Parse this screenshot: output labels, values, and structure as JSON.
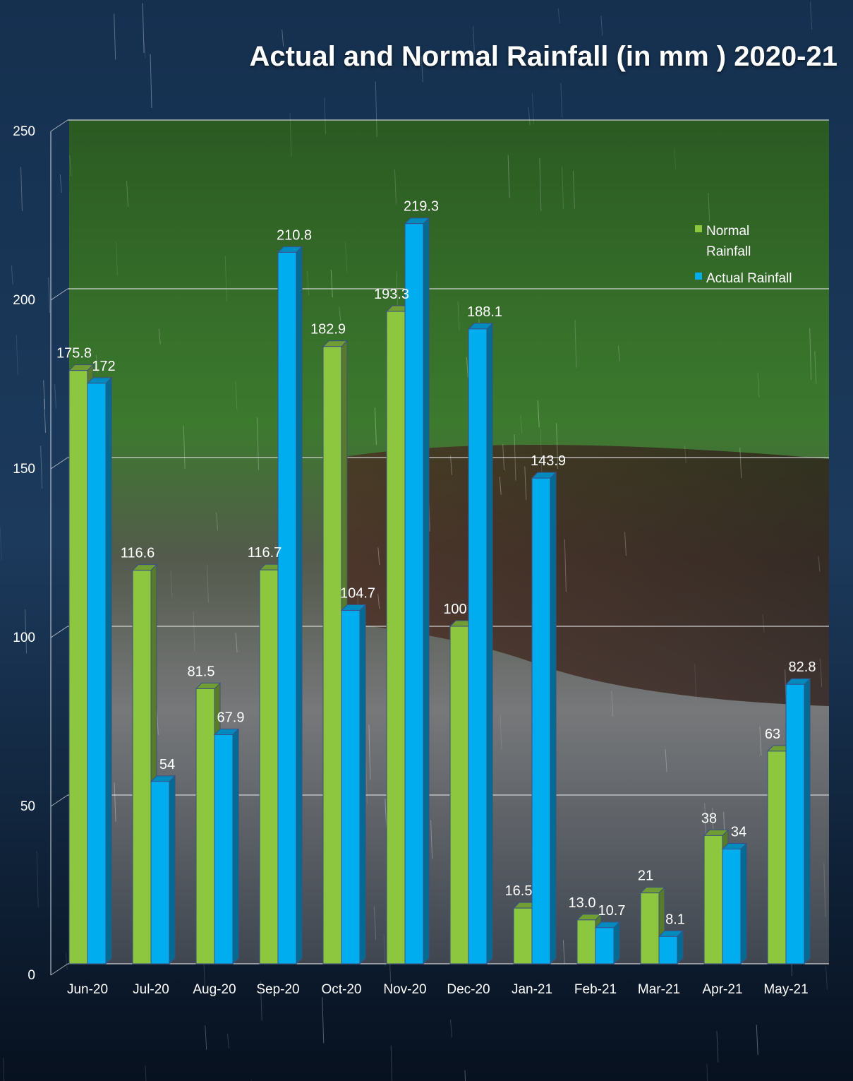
{
  "chart_data": {
    "type": "bar",
    "title": "Actual and Normal Rainfall (in mm ) 2020-21",
    "categories": [
      "Jun-20",
      "Jul-20",
      "Aug-20",
      "Sep-20",
      "Oct-20",
      "Nov-20",
      "Dec-20",
      "Jan-21",
      "Feb-21",
      "Mar-21",
      "Apr-21",
      "May-21"
    ],
    "series": [
      {
        "name": "Normal Rainfall",
        "color": "#8dc63f",
        "values": [
          175.8,
          116.6,
          81.5,
          116.7,
          182.9,
          193.3,
          100,
          16.5,
          13.0,
          21,
          38,
          63
        ],
        "labels": [
          "175.8",
          "116.6",
          "81.5",
          "116.7",
          "182.9",
          "193.3",
          "100",
          "16.5",
          "13.0",
          "21",
          "38",
          "63"
        ]
      },
      {
        "name": "Actual Rainfall",
        "color": "#00aeef",
        "values": [
          172,
          54,
          67.9,
          210.8,
          104.7,
          219.3,
          188.1,
          143.9,
          10.7,
          8.1,
          34,
          82.8
        ],
        "labels": [
          "172",
          "54",
          "67.9",
          "210.8",
          "104.7",
          "219.3",
          "188.1",
          "143.9",
          "10.7",
          "8.1",
          "34",
          "82.8"
        ]
      }
    ],
    "ylim": [
      0,
      250
    ],
    "yticks": [
      "0",
      "50",
      "100",
      "150",
      "200",
      "250"
    ],
    "grid": true,
    "legend_position": "top-right"
  }
}
